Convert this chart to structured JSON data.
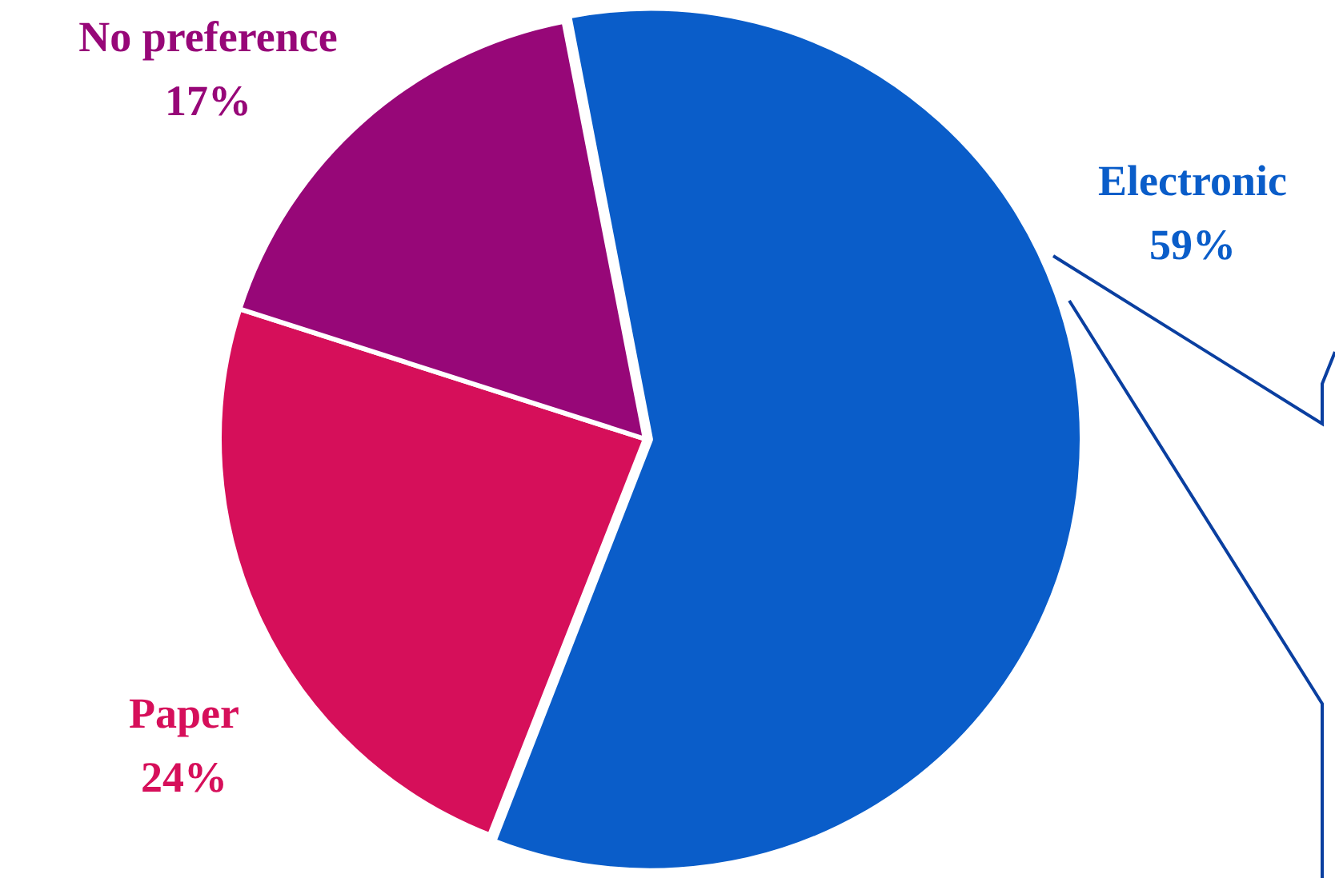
{
  "chart_data": {
    "type": "pie",
    "categories": [
      "Electronic",
      "Paper",
      "No preference"
    ],
    "values": [
      59,
      24,
      17
    ],
    "value_labels": [
      "59%",
      "24%",
      "17%"
    ],
    "colors": [
      "#0a5dc9",
      "#d60f5a",
      "#970778"
    ],
    "legend": false
  }
}
